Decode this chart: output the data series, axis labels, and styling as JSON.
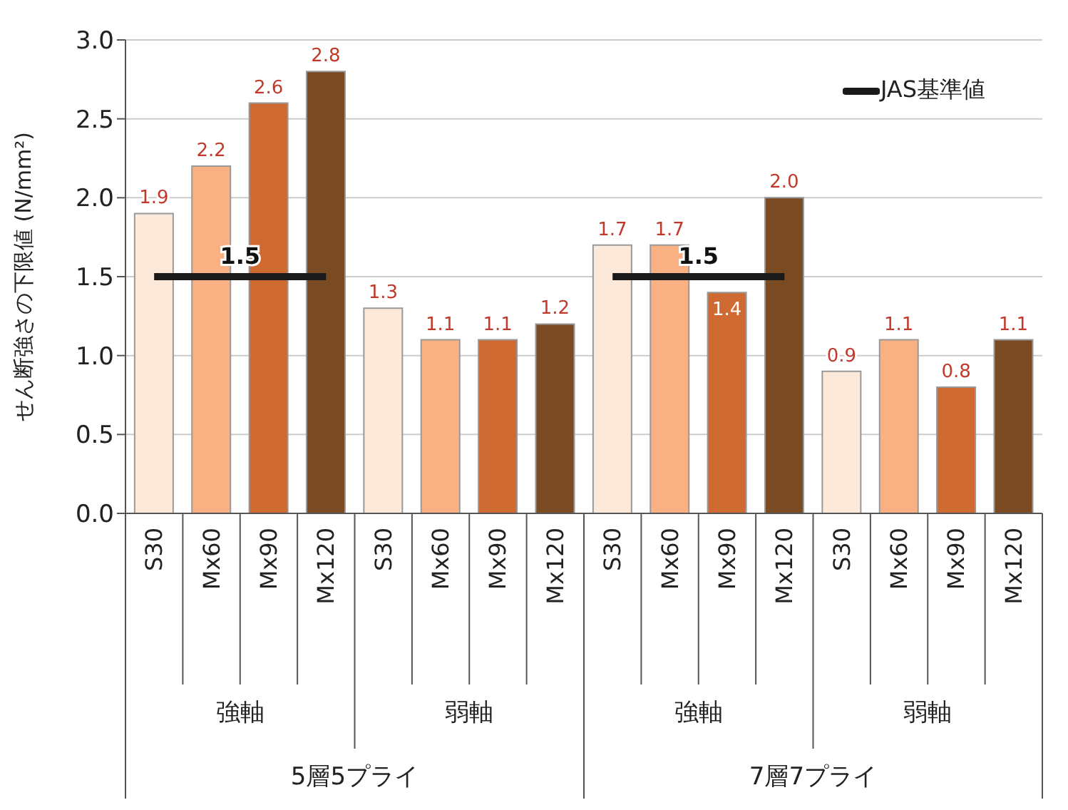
{
  "chart_data": {
    "type": "bar",
    "ylabel": "せん断強さの下限値 (N/mm²)",
    "categories": [
      "S30",
      "Mx60",
      "Mx90",
      "Mx120",
      "S30",
      "Mx60",
      "Mx90",
      "Mx120",
      "S30",
      "Mx60",
      "Mx90",
      "Mx120",
      "S30",
      "Mx60",
      "Mx90",
      "Mx120"
    ],
    "series": [
      {
        "colors": [
          "#fde9d9",
          "#f9b183",
          "#cf6a32",
          "#7a4a22",
          "#fde9d9",
          "#f9b183",
          "#cf6a32",
          "#7a4a22",
          "#fde9d9",
          "#f9b183",
          "#cf6a32",
          "#7a4a22",
          "#fde9d9",
          "#f9b183",
          "#cf6a32",
          "#7a4a22"
        ],
        "values": [
          1.9,
          2.2,
          2.6,
          2.8,
          1.3,
          1.1,
          1.1,
          1.2,
          1.7,
          1.7,
          1.4,
          2.0,
          0.9,
          1.1,
          0.8,
          1.1
        ],
        "value_labels": [
          "1.9",
          "2.2",
          "2.6",
          "2.8",
          "1.3",
          "1.1",
          "1.1",
          "1.2",
          "1.7",
          "1.7",
          "1.4",
          "2.0",
          "0.9",
          "1.1",
          "0.8",
          "1.1"
        ]
      },
      {
        "type": "line",
        "name": "JAS基準値",
        "color": "#1a1a1a",
        "values": [
          1.5,
          1.5,
          1.5,
          1.5,
          null,
          null,
          null,
          null,
          1.5,
          1.5,
          1.5,
          1.5,
          null,
          null,
          null,
          null
        ],
        "value_labels": [
          null,
          "1.5",
          null,
          null,
          null,
          null,
          null,
          null,
          null,
          "1.5",
          null,
          null,
          null,
          null,
          null,
          null
        ]
      }
    ],
    "annotations": [
      "強軸",
      "弱軸",
      "強軸",
      "弱軸",
      "5層5プライ",
      "7層7プライ"
    ],
    "ylim": [
      0,
      3
    ],
    "yticks": [
      {
        "value": 0,
        "label": "0.0"
      },
      {
        "value": 0.5,
        "label": "0.5"
      },
      {
        "value": 1,
        "label": "1.0"
      },
      {
        "value": 1.5,
        "label": "1.5"
      },
      {
        "value": 2,
        "label": "2.0"
      },
      {
        "value": 2.5,
        "label": "2.5"
      },
      {
        "value": 3,
        "label": "3.0"
      }
    ],
    "grid": "y",
    "legend": "top right"
  }
}
